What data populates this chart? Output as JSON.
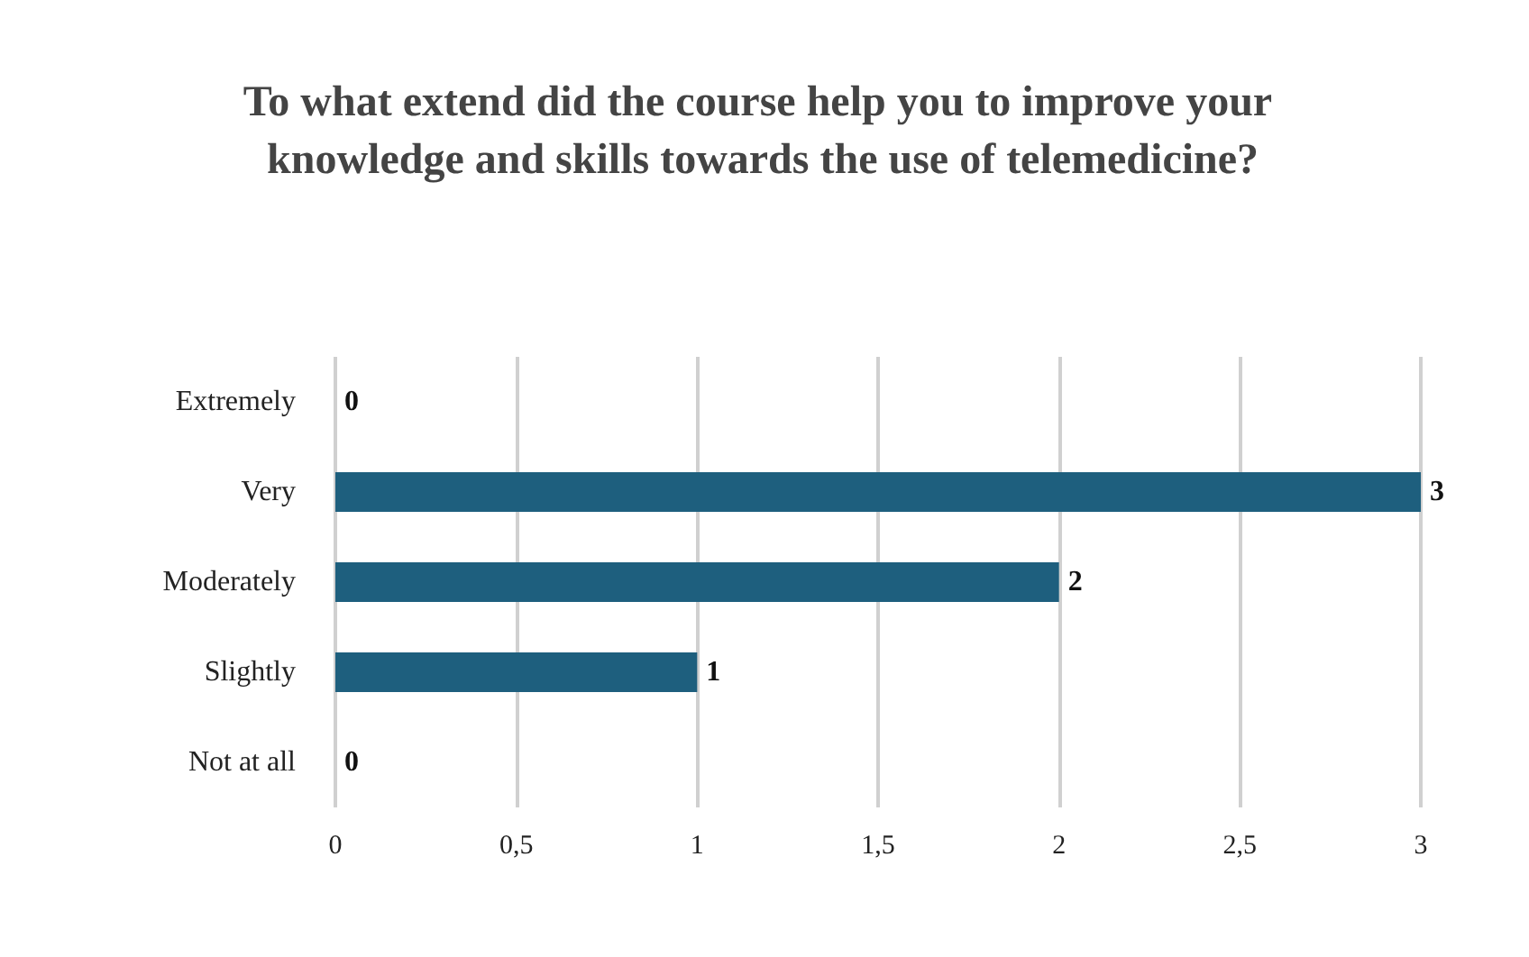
{
  "chart_data": {
    "type": "bar",
    "orientation": "horizontal",
    "title": "To what extend did the course help you to improve your knowledge and skills towards the use of telemedicine?",
    "categories": [
      "Extremely",
      "Very",
      "Moderately",
      "Slightly",
      "Not at all"
    ],
    "values": [
      0,
      3,
      2,
      1,
      0
    ],
    "color": "#1e5f7e",
    "xlim": [
      0,
      3
    ],
    "xticks": [
      0,
      {
        "value": 0.5,
        "label": "0,5"
      },
      1,
      {
        "value": 1.5,
        "label": "1,5"
      },
      2,
      {
        "value": 2.5,
        "label": "2,5"
      },
      3
    ],
    "grid": "x",
    "data_labels": true
  }
}
